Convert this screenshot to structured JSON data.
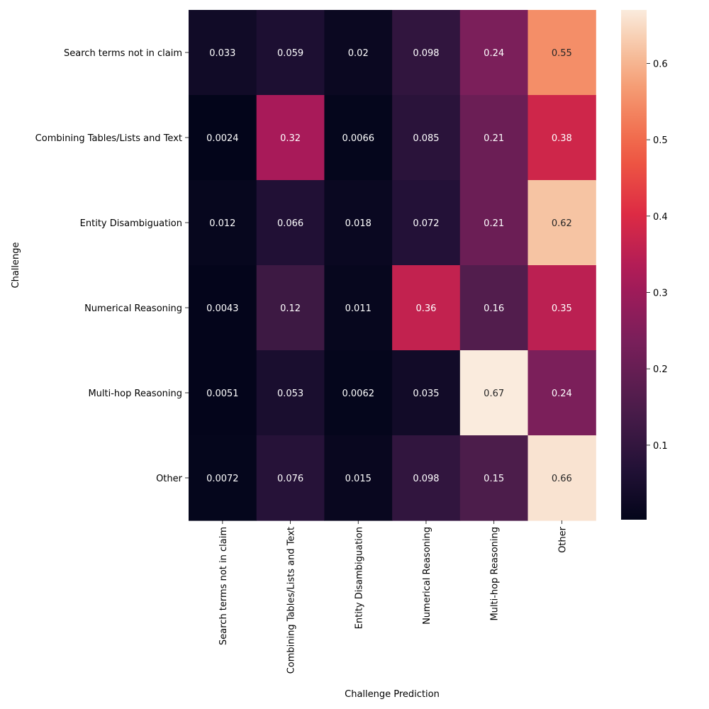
{
  "chart_data": {
    "type": "heatmap",
    "title": "",
    "xlabel": "Challenge Prediction",
    "ylabel": "Challenge",
    "row_labels": [
      "Search terms not in claim",
      "Combining Tables/Lists and Text",
      "Entity Disambiguation",
      "Numerical Reasoning",
      "Multi-hop Reasoning",
      "Other"
    ],
    "col_labels": [
      "Search terms not in claim",
      "Combining Tables/Lists and Text",
      "Entity Disambiguation",
      "Numerical Reasoning",
      "Multi-hop Reasoning",
      "Other"
    ],
    "values": [
      [
        0.033,
        0.059,
        0.02,
        0.098,
        0.24,
        0.55
      ],
      [
        0.0024,
        0.32,
        0.0066,
        0.085,
        0.21,
        0.38
      ],
      [
        0.012,
        0.066,
        0.018,
        0.072,
        0.21,
        0.62
      ],
      [
        0.0043,
        0.12,
        0.011,
        0.36,
        0.16,
        0.35
      ],
      [
        0.0051,
        0.053,
        0.0062,
        0.035,
        0.67,
        0.24
      ],
      [
        0.0072,
        0.076,
        0.015,
        0.098,
        0.15,
        0.66
      ]
    ],
    "value_labels": [
      [
        "0.033",
        "0.059",
        "0.02",
        "0.098",
        "0.24",
        "0.55"
      ],
      [
        "0.0024",
        "0.32",
        "0.0066",
        "0.085",
        "0.21",
        "0.38"
      ],
      [
        "0.012",
        "0.066",
        "0.018",
        "0.072",
        "0.21",
        "0.62"
      ],
      [
        "0.0043",
        "0.12",
        "0.011",
        "0.36",
        "0.16",
        "0.35"
      ],
      [
        "0.0051",
        "0.053",
        "0.0062",
        "0.035",
        "0.67",
        "0.24"
      ],
      [
        "0.0072",
        "0.076",
        "0.015",
        "0.098",
        "0.15",
        "0.66"
      ]
    ],
    "colormap": "rocket",
    "colorbar": {
      "range": [
        0.0024,
        0.67
      ],
      "ticks": [
        0.1,
        0.2,
        0.3,
        0.4,
        0.5,
        0.6
      ],
      "tick_labels": [
        "0.1",
        "0.2",
        "0.3",
        "0.4",
        "0.5",
        "0.6"
      ]
    },
    "grid": false,
    "colorbar_position": "right"
  }
}
